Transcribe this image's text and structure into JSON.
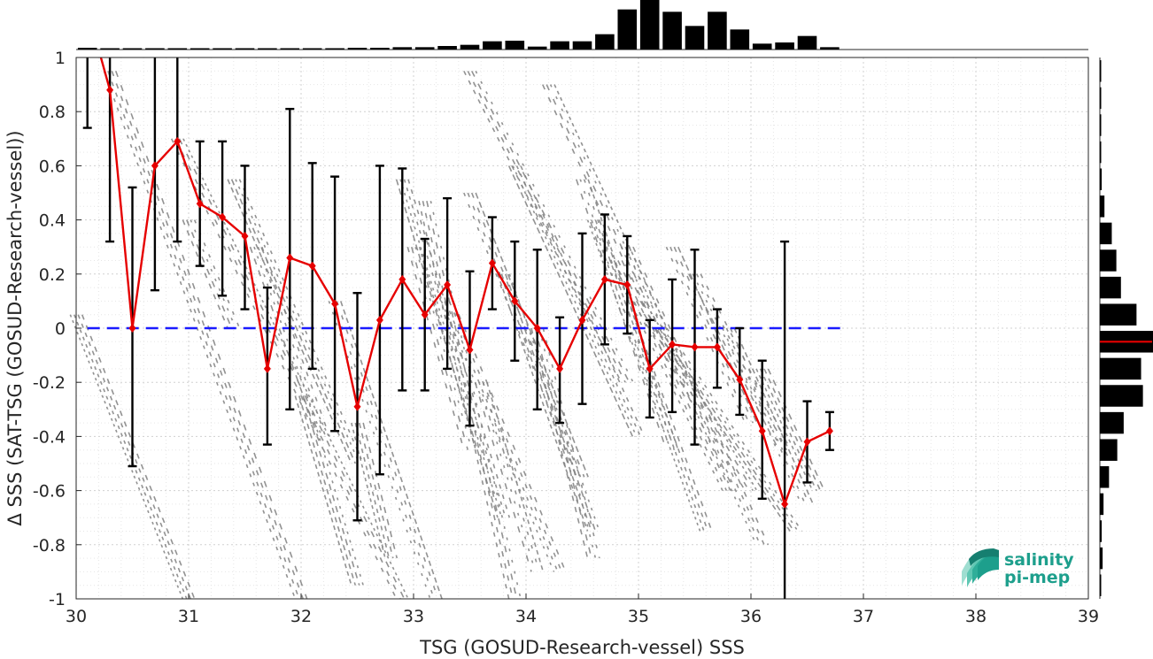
{
  "chart_data": {
    "type": "scatter",
    "xlabel": "TSG (GOSUD-Research-vessel) SSS",
    "ylabel": "Δ SSS (SAT-TSG (GOSUD-Research-vessel))",
    "xlim": [
      30,
      39
    ],
    "ylim": [
      -1,
      1
    ],
    "xticks": [
      "30",
      "31",
      "32",
      "33",
      "34",
      "35",
      "36",
      "37",
      "38",
      "39"
    ],
    "yticks": [
      "-1",
      "-0.8",
      "-0.6",
      "-0.4",
      "-0.2",
      "0",
      "0.2",
      "0.4",
      "0.6",
      "0.8",
      "1"
    ],
    "grid": true,
    "zero_line_color": "#1a1aff",
    "mean_line_color": "#e60000",
    "scatter_color": "#808080",
    "series": [
      {
        "type": "line-errorbar",
        "x": [
          30.1,
          30.3,
          30.5,
          30.7,
          30.9,
          31.1,
          31.3,
          31.5,
          31.7,
          31.9,
          32.1,
          32.3,
          32.5,
          32.7,
          32.9,
          33.1,
          33.3,
          33.5,
          33.7,
          33.9,
          34.1,
          34.3,
          34.5,
          34.7,
          34.9,
          35.1,
          35.3,
          35.5,
          35.7,
          35.9,
          36.1,
          36.3,
          36.5,
          36.7
        ],
        "y": [
          1.18,
          0.88,
          0.0,
          0.6,
          0.69,
          0.46,
          0.41,
          0.34,
          -0.15,
          0.26,
          0.23,
          0.09,
          -0.29,
          0.03,
          0.18,
          0.05,
          0.16,
          -0.08,
          0.24,
          0.1,
          0.0,
          -0.15,
          0.03,
          0.18,
          0.16,
          -0.15,
          -0.06,
          -0.07,
          -0.07,
          -0.19,
          -0.38,
          -0.65,
          -0.42,
          -0.38
        ],
        "err_low": [
          0.74,
          0.32,
          -0.51,
          0.14,
          0.32,
          0.23,
          0.12,
          0.07,
          -0.43,
          -0.3,
          -0.15,
          -0.38,
          -0.71,
          -0.54,
          -0.23,
          -0.23,
          -0.15,
          -0.36,
          0.07,
          -0.12,
          -0.3,
          -0.35,
          -0.28,
          -0.06,
          -0.02,
          -0.33,
          -0.31,
          -0.43,
          -0.22,
          -0.32,
          -0.63,
          -1.0,
          -0.57,
          -0.45
        ],
        "err_high": [
          1.2,
          1.2,
          0.52,
          1.2,
          1.2,
          0.69,
          0.69,
          0.6,
          0.15,
          0.81,
          0.61,
          0.56,
          0.13,
          0.6,
          0.59,
          0.33,
          0.48,
          0.21,
          0.41,
          0.32,
          0.29,
          0.04,
          0.35,
          0.42,
          0.34,
          0.03,
          0.18,
          0.29,
          0.07,
          0.0,
          -0.12,
          0.32,
          -0.27,
          -0.31
        ]
      }
    ],
    "scatter_streaks": [
      {
        "x0": 30.0,
        "y0": 0.05,
        "x1": 31.0,
        "y1": -1.0
      },
      {
        "x0": 30.3,
        "y0": 0.95,
        "x1": 32.0,
        "y1": -1.0
      },
      {
        "x0": 30.9,
        "y0": 0.7,
        "x1": 32.9,
        "y1": -1.0
      },
      {
        "x0": 31.4,
        "y0": 0.55,
        "x1": 32.5,
        "y1": -0.5
      },
      {
        "x0": 31.6,
        "y0": 0.3,
        "x1": 32.2,
        "y1": -0.4
      },
      {
        "x0": 32.3,
        "y0": 0.1,
        "x1": 33.2,
        "y1": -1.0
      },
      {
        "x0": 32.5,
        "y0": -0.35,
        "x1": 32.8,
        "y1": -0.85
      },
      {
        "x0": 33.1,
        "y0": 0.47,
        "x1": 33.9,
        "y1": -1.0
      },
      {
        "x0": 33.0,
        "y0": 0.3,
        "x1": 33.5,
        "y1": -0.45
      },
      {
        "x0": 32.9,
        "y0": 0.55,
        "x1": 33.8,
        "y1": -0.7
      },
      {
        "x0": 33.3,
        "y0": 0.1,
        "x1": 34.3,
        "y1": -0.9
      },
      {
        "x0": 33.5,
        "y0": 0.5,
        "x1": 34.5,
        "y1": -0.55
      },
      {
        "x0": 33.8,
        "y0": 0.2,
        "x1": 34.6,
        "y1": -0.75
      },
      {
        "x0": 34.1,
        "y0": 0.0,
        "x1": 34.6,
        "y1": -0.85
      },
      {
        "x0": 34.5,
        "y0": 0.55,
        "x1": 35.3,
        "y1": -0.45
      },
      {
        "x0": 34.6,
        "y0": 0.4,
        "x1": 35.6,
        "y1": -0.75
      },
      {
        "x0": 34.8,
        "y0": 0.25,
        "x1": 35.8,
        "y1": -0.6
      },
      {
        "x0": 35.0,
        "y0": 0.1,
        "x1": 36.0,
        "y1": -0.6
      },
      {
        "x0": 35.2,
        "y0": 0.0,
        "x1": 36.4,
        "y1": -0.75
      },
      {
        "x0": 35.5,
        "y0": 0.2,
        "x1": 36.3,
        "y1": -0.45
      },
      {
        "x0": 35.8,
        "y0": 0.0,
        "x1": 36.5,
        "y1": -0.65
      },
      {
        "x0": 36.1,
        "y0": -0.15,
        "x1": 36.6,
        "y1": -0.6
      },
      {
        "x0": 33.5,
        "y0": 0.95,
        "x1": 34.9,
        "y1": -0.2
      },
      {
        "x0": 34.2,
        "y0": 0.9,
        "x1": 35.2,
        "y1": 0.0
      },
      {
        "x0": 33.9,
        "y0": 0.6,
        "x1": 35.0,
        "y1": -0.4
      },
      {
        "x0": 34.9,
        "y0": 0.3,
        "x1": 36.1,
        "y1": -0.8
      },
      {
        "x0": 35.3,
        "y0": 0.3,
        "x1": 36.0,
        "y1": -0.35
      },
      {
        "x0": 32.0,
        "y0": -0.25,
        "x1": 32.5,
        "y1": -0.95
      },
      {
        "x0": 31.0,
        "y0": 0.4,
        "x1": 31.4,
        "y1": 0.0
      },
      {
        "x0": 33.6,
        "y0": -0.2,
        "x1": 34.1,
        "y1": -0.9
      }
    ],
    "top_histogram": {
      "x": [
        30.1,
        30.3,
        30.5,
        30.7,
        30.9,
        31.1,
        31.3,
        31.5,
        31.7,
        31.9,
        32.1,
        32.3,
        32.5,
        32.7,
        32.9,
        33.1,
        33.3,
        33.5,
        33.7,
        33.9,
        34.1,
        34.3,
        34.5,
        34.7,
        34.9,
        35.1,
        35.3,
        35.5,
        35.7,
        35.9,
        36.1,
        36.3,
        36.5,
        36.7
      ],
      "counts": [
        3,
        1,
        1,
        1,
        1,
        1,
        1,
        1,
        2,
        2,
        2,
        2,
        3,
        3,
        4,
        4,
        6,
        8,
        14,
        15,
        5,
        14,
        14,
        26,
        68,
        84,
        64,
        40,
        64,
        34,
        10,
        12,
        23,
        4
      ]
    },
    "right_histogram": {
      "y": [
        0.95,
        0.85,
        0.75,
        0.65,
        0.55,
        0.45,
        0.35,
        0.25,
        0.15,
        0.05,
        -0.05,
        -0.15,
        -0.25,
        -0.35,
        -0.45,
        -0.55,
        -0.65,
        -0.75,
        -0.85,
        -0.95
      ],
      "counts": [
        1,
        1,
        1,
        1,
        2,
        5,
        13,
        18,
        23,
        40,
        58,
        45,
        47,
        26,
        19,
        10,
        4,
        2,
        3,
        1
      ],
      "mean": -0.05
    }
  },
  "logo": {
    "line1": "salinity",
    "line2": "pi-mep",
    "color": "#1d9f8c"
  }
}
